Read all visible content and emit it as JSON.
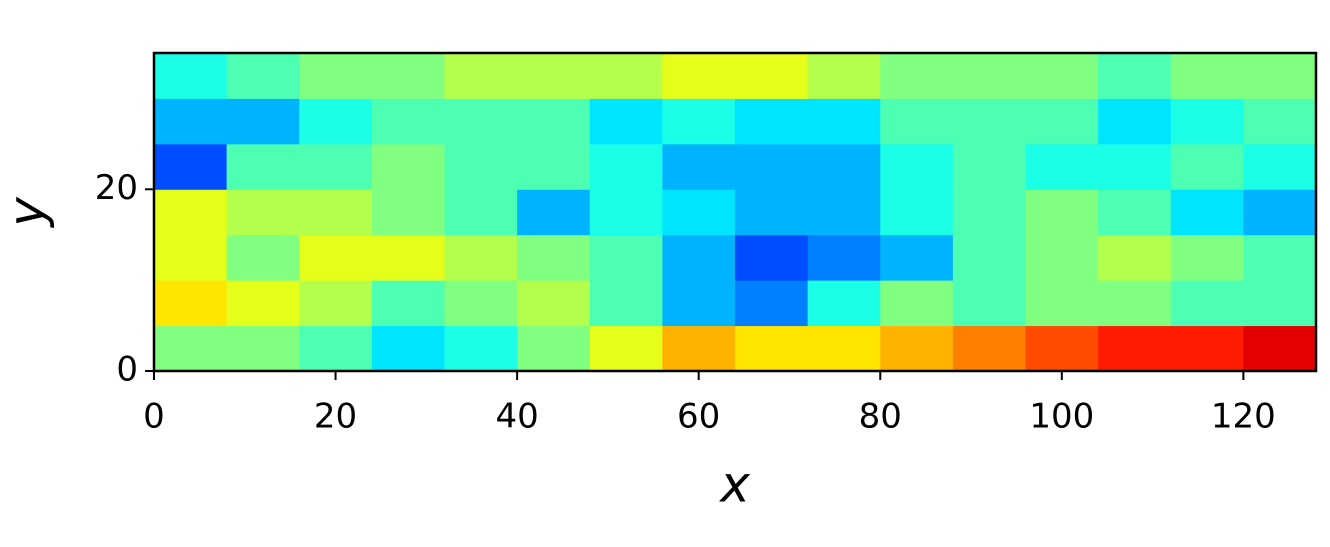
{
  "chart_data": {
    "type": "heatmap",
    "colormap": "jet",
    "xlabel": "x",
    "ylabel": "y",
    "x_edges": [
      0,
      8,
      16,
      24,
      32,
      40,
      48,
      56,
      64,
      72,
      80,
      88,
      96,
      104,
      112,
      120,
      128
    ],
    "y_edges": [
      0,
      5,
      10,
      15,
      20,
      25,
      30,
      35
    ],
    "z": [
      [
        0.5,
        0.5,
        0.45,
        0.35,
        0.4,
        0.5,
        0.6,
        0.7,
        0.65,
        0.65,
        0.7,
        0.75,
        0.8,
        0.85,
        0.85,
        0.9
      ],
      [
        0.65,
        0.6,
        0.55,
        0.45,
        0.5,
        0.55,
        0.45,
        0.3,
        0.25,
        0.4,
        0.5,
        0.45,
        0.5,
        0.5,
        0.45,
        0.45
      ],
      [
        0.6,
        0.5,
        0.6,
        0.6,
        0.55,
        0.5,
        0.45,
        0.3,
        0.2,
        0.25,
        0.3,
        0.45,
        0.5,
        0.55,
        0.5,
        0.45
      ],
      [
        0.6,
        0.55,
        0.55,
        0.5,
        0.45,
        0.3,
        0.4,
        0.35,
        0.3,
        0.3,
        0.4,
        0.45,
        0.5,
        0.45,
        0.35,
        0.3
      ],
      [
        0.2,
        0.45,
        0.45,
        0.5,
        0.45,
        0.45,
        0.4,
        0.3,
        0.3,
        0.3,
        0.4,
        0.45,
        0.4,
        0.4,
        0.45,
        0.4
      ],
      [
        0.3,
        0.3,
        0.4,
        0.45,
        0.45,
        0.45,
        0.35,
        0.4,
        0.35,
        0.35,
        0.45,
        0.45,
        0.45,
        0.35,
        0.4,
        0.45
      ],
      [
        0.4,
        0.45,
        0.5,
        0.5,
        0.55,
        0.55,
        0.55,
        0.6,
        0.6,
        0.55,
        0.5,
        0.5,
        0.5,
        0.45,
        0.5,
        0.5
      ]
    ],
    "xlim": [
      0,
      128
    ],
    "ylim": [
      0,
      35
    ],
    "xticks": [
      0,
      20,
      40,
      60,
      80,
      100,
      120
    ],
    "yticks": [
      0,
      20
    ]
  }
}
